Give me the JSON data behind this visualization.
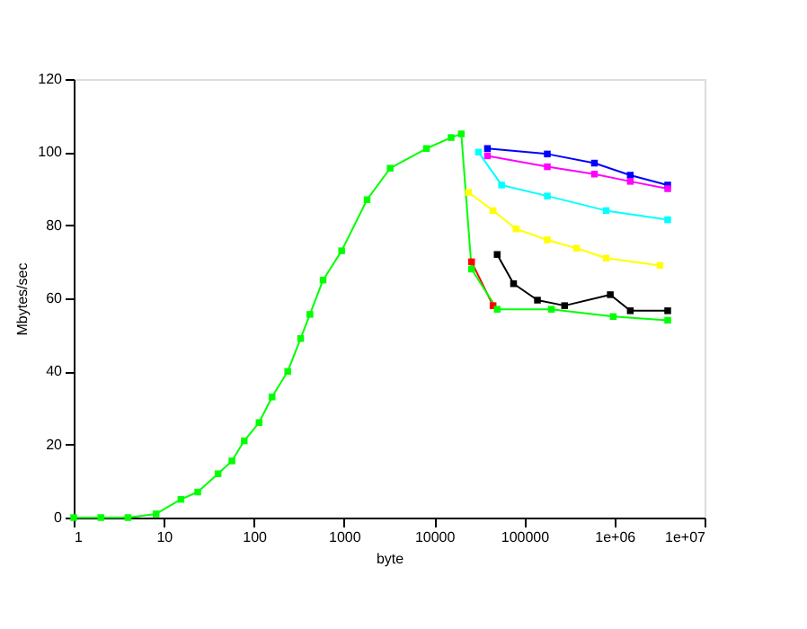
{
  "chart_data": {
    "type": "line",
    "xlabel": "byte",
    "ylabel": "Mbytes/sec",
    "log": "x",
    "xlim": [
      1,
      10000000
    ],
    "ylim": [
      0,
      120
    ],
    "xticks": [
      1,
      10,
      100,
      1000,
      10000,
      100000,
      {
        "value": 1000000,
        "label": "1e+06"
      },
      {
        "value": 10000000,
        "label": "1e+07"
      }
    ],
    "yticks": [
      0,
      20,
      40,
      60,
      80,
      100,
      120
    ],
    "grid": false,
    "legend": false,
    "marker": "square",
    "line_style": "solid",
    "series": [
      {
        "color": "#0000ff",
        "x": [
          39000,
          180000,
          600000,
          1500000,
          3900000
        ],
        "values": [
          101,
          99.5,
          97,
          93.7,
          91
        ]
      },
      {
        "color": "#ff00ff",
        "x": [
          39000,
          180000,
          600000,
          1500000,
          3900000
        ],
        "values": [
          99,
          96,
          94,
          92,
          90
        ]
      },
      {
        "color": "#00ffff",
        "x": [
          31000,
          56000,
          180000,
          810000,
          3900000
        ],
        "values": [
          100,
          91,
          88,
          84,
          81.5
        ]
      },
      {
        "color": "#ffff00",
        "x": [
          24000,
          45000,
          81000,
          180000,
          380000,
          810000,
          3200000
        ],
        "values": [
          89,
          84,
          79,
          76,
          73.7,
          71,
          69
        ]
      },
      {
        "color": "#000000",
        "x": [
          50000,
          76000,
          140000,
          280000,
          900000,
          1500000,
          3900000
        ],
        "values": [
          72,
          64,
          59.5,
          58,
          61,
          56.6,
          56.6
        ]
      },
      {
        "color": "#ff0000",
        "x": [
          26000,
          45000
        ],
        "values": [
          70,
          58
        ]
      },
      {
        "color": "#00ff00",
        "x": [
          1,
          2,
          4,
          8.2,
          15.5,
          23.8,
          40,
          57,
          78,
          114,
          159,
          237,
          330,
          418,
          585,
          940,
          1800,
          3250,
          8200,
          15400,
          20000,
          26000,
          50000,
          200000,
          970000,
          3900000
        ],
        "values": [
          0,
          0,
          0,
          1,
          5,
          7,
          12,
          15.5,
          21,
          26,
          33,
          40,
          49,
          55.6,
          65,
          73,
          87,
          95.6,
          101,
          104,
          105,
          68,
          57,
          57,
          55,
          54
        ]
      }
    ]
  }
}
